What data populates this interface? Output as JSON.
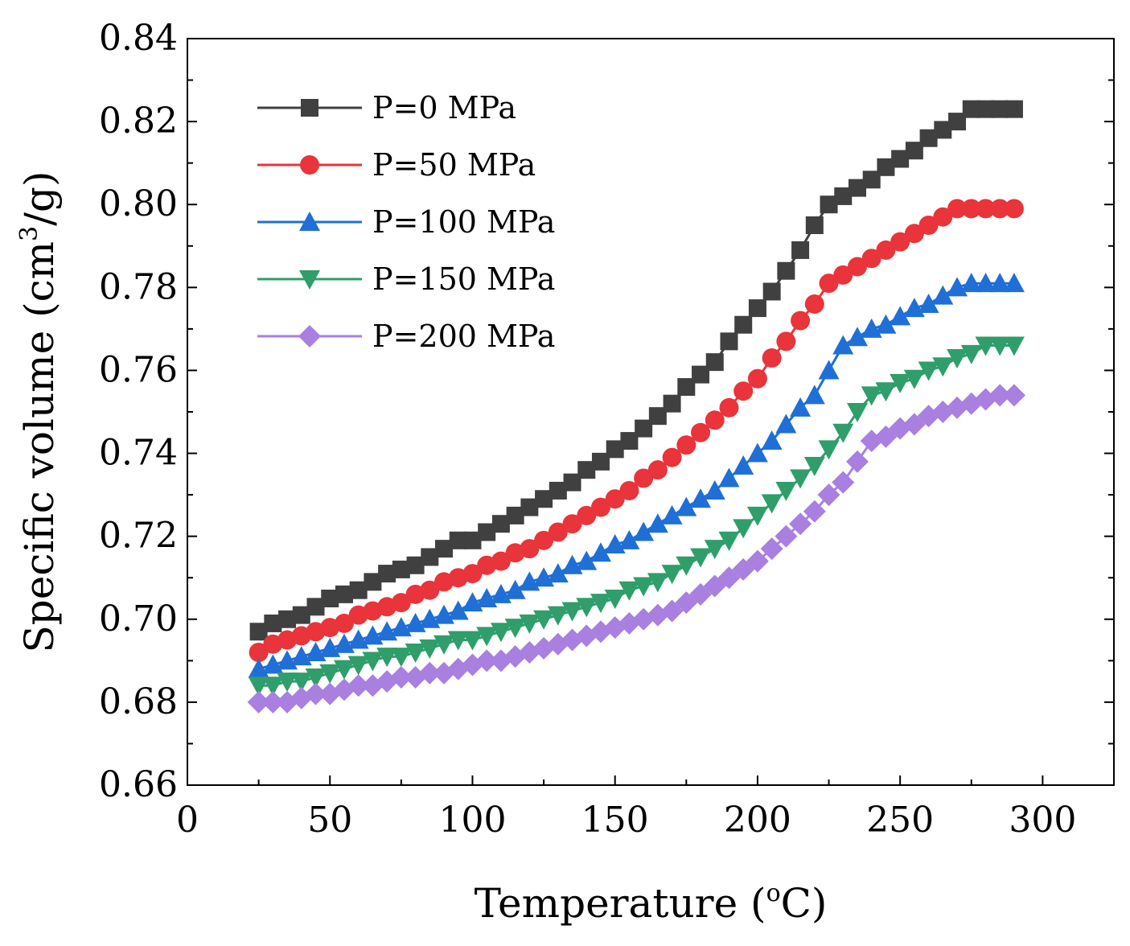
{
  "chart_data": {
    "type": "line",
    "title": "",
    "xlabel": "Temperature (",
    "xlabel_sup": "o",
    "xlabel_end": "C)",
    "ylabel": "Specific volume (cm",
    "ylabel_sup": "3",
    "ylabel_end": "/g)",
    "xlim": [
      0,
      325
    ],
    "ylim": [
      0.66,
      0.84
    ],
    "x_ticks": [
      0,
      50,
      100,
      150,
      200,
      250,
      300
    ],
    "x_tick_labels": [
      "0",
      "50",
      "100",
      "150",
      "200",
      "250",
      "300"
    ],
    "y_ticks": [
      0.66,
      0.68,
      0.7,
      0.72,
      0.74,
      0.76,
      0.78,
      0.8,
      0.82,
      0.84
    ],
    "y_tick_labels": [
      "0.66",
      "0.68",
      "0.70",
      "0.72",
      "0.74",
      "0.76",
      "0.78",
      "0.80",
      "0.82",
      "0.84"
    ],
    "legend_position": "top-left",
    "grid": false,
    "series": [
      {
        "name": "P=0 MPa",
        "marker": "square",
        "color": "#404040",
        "x": [
          25,
          30,
          35,
          40,
          45,
          50,
          55,
          60,
          65,
          70,
          75,
          80,
          85,
          90,
          95,
          100,
          105,
          110,
          115,
          120,
          125,
          130,
          135,
          140,
          145,
          150,
          155,
          160,
          165,
          170,
          175,
          180,
          185,
          190,
          195,
          200,
          205,
          210,
          215,
          220,
          225,
          230,
          235,
          240,
          245,
          250,
          255,
          260,
          265,
          270,
          275,
          280,
          285,
          290
        ],
        "values": [
          0.697,
          0.699,
          0.7,
          0.701,
          0.703,
          0.705,
          0.706,
          0.707,
          0.709,
          0.711,
          0.712,
          0.713,
          0.715,
          0.717,
          0.719,
          0.719,
          0.721,
          0.723,
          0.725,
          0.727,
          0.729,
          0.731,
          0.733,
          0.736,
          0.738,
          0.741,
          0.743,
          0.746,
          0.749,
          0.752,
          0.756,
          0.759,
          0.762,
          0.767,
          0.771,
          0.775,
          0.779,
          0.784,
          0.789,
          0.795,
          0.8,
          0.802,
          0.804,
          0.806,
          0.809,
          0.811,
          0.813,
          0.816,
          0.818,
          0.82,
          0.823,
          0.823,
          0.823,
          0.823
        ]
      },
      {
        "name": "P=50 MPa",
        "marker": "circle",
        "color": "#e8343a",
        "x": [
          25,
          30,
          35,
          40,
          45,
          50,
          55,
          60,
          65,
          70,
          75,
          80,
          85,
          90,
          95,
          100,
          105,
          110,
          115,
          120,
          125,
          130,
          135,
          140,
          145,
          150,
          155,
          160,
          165,
          170,
          175,
          180,
          185,
          190,
          195,
          200,
          205,
          210,
          215,
          220,
          225,
          230,
          235,
          240,
          245,
          250,
          255,
          260,
          265,
          270,
          275,
          280,
          285,
          290
        ],
        "values": [
          0.692,
          0.694,
          0.695,
          0.696,
          0.697,
          0.698,
          0.699,
          0.701,
          0.702,
          0.703,
          0.704,
          0.706,
          0.707,
          0.709,
          0.71,
          0.711,
          0.713,
          0.714,
          0.716,
          0.717,
          0.719,
          0.721,
          0.723,
          0.725,
          0.727,
          0.729,
          0.731,
          0.734,
          0.736,
          0.739,
          0.742,
          0.745,
          0.748,
          0.751,
          0.755,
          0.758,
          0.763,
          0.767,
          0.772,
          0.776,
          0.781,
          0.783,
          0.785,
          0.787,
          0.789,
          0.791,
          0.793,
          0.795,
          0.797,
          0.799,
          0.799,
          0.799,
          0.799,
          0.799
        ]
      },
      {
        "name": "P=100 MPa",
        "marker": "triangle-up",
        "color": "#1f6fd6",
        "x": [
          25,
          30,
          35,
          40,
          45,
          50,
          55,
          60,
          65,
          70,
          75,
          80,
          85,
          90,
          95,
          100,
          105,
          110,
          115,
          120,
          125,
          130,
          135,
          140,
          145,
          150,
          155,
          160,
          165,
          170,
          175,
          180,
          185,
          190,
          195,
          200,
          205,
          210,
          215,
          220,
          225,
          230,
          235,
          240,
          245,
          250,
          255,
          260,
          265,
          270,
          275,
          280,
          285,
          290
        ],
        "values": [
          0.688,
          0.689,
          0.69,
          0.691,
          0.692,
          0.693,
          0.694,
          0.695,
          0.696,
          0.697,
          0.698,
          0.699,
          0.7,
          0.701,
          0.702,
          0.704,
          0.705,
          0.706,
          0.707,
          0.709,
          0.71,
          0.711,
          0.713,
          0.714,
          0.716,
          0.718,
          0.719,
          0.721,
          0.723,
          0.725,
          0.727,
          0.729,
          0.731,
          0.734,
          0.737,
          0.74,
          0.743,
          0.747,
          0.751,
          0.754,
          0.76,
          0.766,
          0.768,
          0.77,
          0.771,
          0.773,
          0.775,
          0.776,
          0.778,
          0.78,
          0.781,
          0.781,
          0.781,
          0.781
        ]
      },
      {
        "name": "P=150 MPa",
        "marker": "triangle-down",
        "color": "#2f9e6a",
        "x": [
          25,
          30,
          35,
          40,
          45,
          50,
          55,
          60,
          65,
          70,
          75,
          80,
          85,
          90,
          95,
          100,
          105,
          110,
          115,
          120,
          125,
          130,
          135,
          140,
          145,
          150,
          155,
          160,
          165,
          170,
          175,
          180,
          185,
          190,
          195,
          200,
          205,
          210,
          215,
          220,
          225,
          230,
          235,
          240,
          245,
          250,
          255,
          260,
          265,
          270,
          275,
          280,
          285,
          290
        ],
        "values": [
          0.684,
          0.684,
          0.685,
          0.685,
          0.686,
          0.687,
          0.688,
          0.689,
          0.69,
          0.691,
          0.691,
          0.692,
          0.693,
          0.694,
          0.695,
          0.695,
          0.696,
          0.697,
          0.698,
          0.699,
          0.7,
          0.701,
          0.702,
          0.703,
          0.704,
          0.705,
          0.707,
          0.708,
          0.709,
          0.711,
          0.713,
          0.715,
          0.717,
          0.719,
          0.722,
          0.725,
          0.728,
          0.731,
          0.734,
          0.737,
          0.741,
          0.745,
          0.75,
          0.754,
          0.755,
          0.757,
          0.758,
          0.76,
          0.761,
          0.763,
          0.764,
          0.766,
          0.766,
          0.766
        ]
      },
      {
        "name": "P=200 MPa",
        "marker": "diamond",
        "color": "#a97fe0",
        "x": [
          25,
          30,
          35,
          40,
          45,
          50,
          55,
          60,
          65,
          70,
          75,
          80,
          85,
          90,
          95,
          100,
          105,
          110,
          115,
          120,
          125,
          130,
          135,
          140,
          145,
          150,
          155,
          160,
          165,
          170,
          175,
          180,
          185,
          190,
          195,
          200,
          205,
          210,
          215,
          220,
          225,
          230,
          235,
          240,
          245,
          250,
          255,
          260,
          265,
          270,
          275,
          280,
          285,
          290
        ],
        "values": [
          0.68,
          0.68,
          0.68,
          0.681,
          0.682,
          0.682,
          0.683,
          0.684,
          0.684,
          0.685,
          0.686,
          0.686,
          0.687,
          0.687,
          0.688,
          0.689,
          0.69,
          0.69,
          0.691,
          0.692,
          0.693,
          0.694,
          0.695,
          0.696,
          0.697,
          0.698,
          0.699,
          0.7,
          0.701,
          0.702,
          0.704,
          0.706,
          0.708,
          0.71,
          0.712,
          0.714,
          0.717,
          0.72,
          0.723,
          0.726,
          0.73,
          0.733,
          0.738,
          0.743,
          0.744,
          0.746,
          0.747,
          0.749,
          0.75,
          0.751,
          0.752,
          0.753,
          0.754,
          0.754
        ]
      }
    ]
  }
}
